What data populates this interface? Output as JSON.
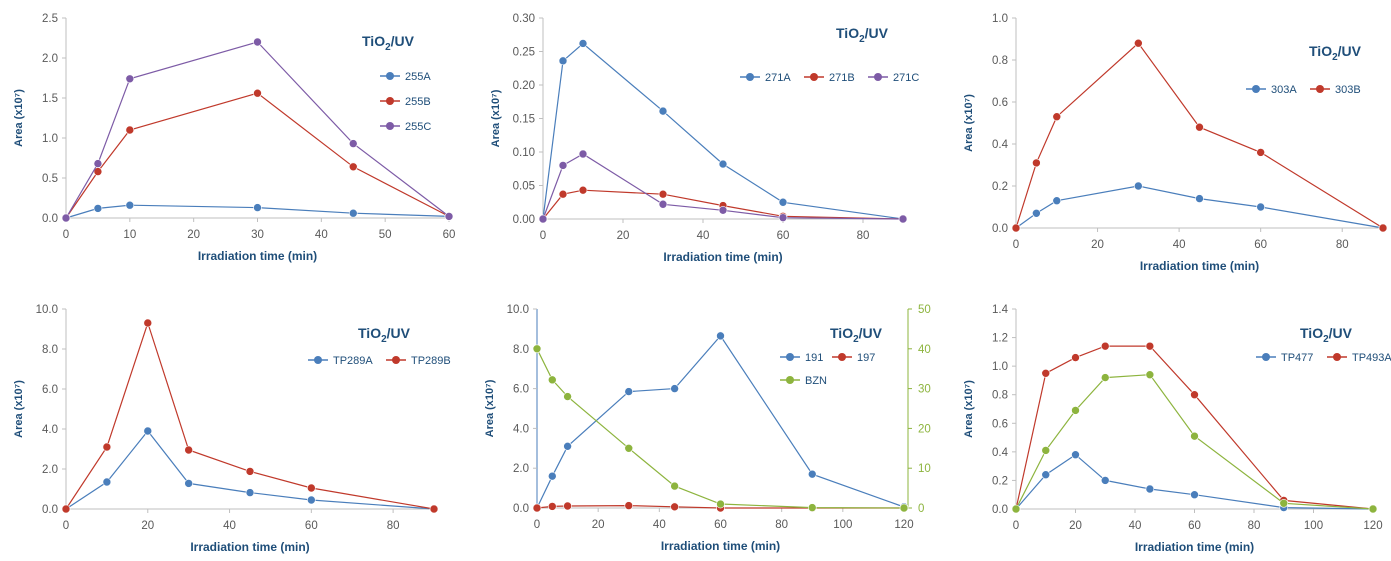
{
  "colors": {
    "blue": "#4a7ebb",
    "red": "#c0392b",
    "purple": "#7d5ba6",
    "green": "#8db43e",
    "axis": "#bfbfbf",
    "text": "#1f4e79"
  },
  "chart_data": [
    {
      "type": "line",
      "title": "TiO2/UV",
      "xlabel": "Irradiation time (min)",
      "ylabel": "Area (x10⁷)",
      "xlim": [
        0,
        60
      ],
      "xticks": [
        0,
        10,
        20,
        30,
        40,
        50,
        60
      ],
      "ylim": [
        0,
        2.5
      ],
      "yticks": [
        0.0,
        0.5,
        1.0,
        1.5,
        2.0,
        2.5
      ],
      "ydec": 1,
      "legend_layout": "vertical",
      "series": [
        {
          "name": "255A",
          "color": "#4a7ebb",
          "x": [
            0,
            5,
            10,
            30,
            45,
            60
          ],
          "y": [
            0.0,
            0.12,
            0.16,
            0.13,
            0.06,
            0.02
          ]
        },
        {
          "name": "255B",
          "color": "#c0392b",
          "x": [
            0,
            5,
            10,
            30,
            45,
            60
          ],
          "y": [
            0.0,
            0.58,
            1.1,
            1.56,
            0.64,
            0.02
          ]
        },
        {
          "name": "255C",
          "color": "#7d5ba6",
          "x": [
            0,
            5,
            10,
            30,
            45,
            60
          ],
          "y": [
            0.0,
            0.68,
            1.74,
            2.2,
            0.93,
            0.02
          ]
        }
      ]
    },
    {
      "type": "line",
      "title": "TiO2/UV",
      "xlabel": "Irradiation time (min)",
      "ylabel": "Area (x10⁷)",
      "xlim": [
        0,
        90
      ],
      "xticks": [
        0,
        20,
        40,
        60,
        80
      ],
      "ylim": [
        0,
        0.3
      ],
      "yticks": [
        0.0,
        0.05,
        0.1,
        0.15,
        0.2,
        0.25,
        0.3
      ],
      "ydec": 2,
      "legend_layout": "horizontal",
      "series": [
        {
          "name": "271A",
          "color": "#4a7ebb",
          "x": [
            0,
            5,
            10,
            30,
            45,
            60,
            90
          ],
          "y": [
            0.0,
            0.236,
            0.262,
            0.161,
            0.082,
            0.025,
            0.0
          ]
        },
        {
          "name": "271B",
          "color": "#c0392b",
          "x": [
            0,
            5,
            10,
            30,
            45,
            60,
            90
          ],
          "y": [
            0.0,
            0.037,
            0.043,
            0.037,
            0.02,
            0.004,
            0.0
          ]
        },
        {
          "name": "271C",
          "color": "#7d5ba6",
          "x": [
            0,
            5,
            10,
            30,
            45,
            60,
            90
          ],
          "y": [
            0.0,
            0.08,
            0.097,
            0.022,
            0.013,
            0.002,
            0.0
          ]
        }
      ]
    },
    {
      "type": "line",
      "title": "TiO2/UV",
      "xlabel": "Irradiation time (min)",
      "ylabel": "Area (x10⁷)",
      "xlim": [
        0,
        90
      ],
      "xticks": [
        0,
        20,
        40,
        60,
        80
      ],
      "ylim": [
        0,
        1.0
      ],
      "yticks": [
        0.0,
        0.2,
        0.4,
        0.6,
        0.8,
        1.0
      ],
      "ydec": 1,
      "legend_layout": "horizontal",
      "series": [
        {
          "name": "303A",
          "color": "#4a7ebb",
          "x": [
            0,
            5,
            10,
            30,
            45,
            60,
            90
          ],
          "y": [
            0.0,
            0.07,
            0.13,
            0.2,
            0.14,
            0.1,
            0.0
          ]
        },
        {
          "name": "303B",
          "color": "#c0392b",
          "x": [
            0,
            5,
            10,
            30,
            45,
            60,
            90
          ],
          "y": [
            0.0,
            0.31,
            0.53,
            0.88,
            0.48,
            0.36,
            0.0
          ]
        }
      ]
    },
    {
      "type": "line",
      "title": "TiO2/UV",
      "xlabel": "Irradiation time (min)",
      "ylabel": "Area (x10⁷)",
      "xlim": [
        0,
        90
      ],
      "xticks": [
        0,
        20,
        40,
        60,
        80
      ],
      "ylim": [
        0,
        10
      ],
      "yticks": [
        0,
        2,
        4,
        6,
        8,
        10
      ],
      "ydec": 1,
      "legend_layout": "horizontal",
      "series": [
        {
          "name": "TP289A",
          "color": "#4a7ebb",
          "x": [
            0,
            10,
            20,
            30,
            45,
            60,
            90
          ],
          "y": [
            0.0,
            1.35,
            3.9,
            1.28,
            0.82,
            0.45,
            0.0
          ]
        },
        {
          "name": "TP289B",
          "color": "#c0392b",
          "x": [
            0,
            10,
            20,
            30,
            45,
            60,
            90
          ],
          "y": [
            0.0,
            3.1,
            9.3,
            2.95,
            1.88,
            1.05,
            0.0
          ]
        }
      ]
    },
    {
      "type": "line",
      "title": "TiO2/UV",
      "xlabel": "Irradiation time (min)",
      "ylabel": "Area (x10⁷)",
      "xlim": [
        0,
        120
      ],
      "xticks": [
        0,
        20,
        40,
        60,
        80,
        100,
        120
      ],
      "ylim": [
        0,
        10
      ],
      "yticks": [
        0,
        2,
        4,
        6,
        8,
        10
      ],
      "ydec": 1,
      "y2lim": [
        0,
        50
      ],
      "y2ticks": [
        0,
        10,
        20,
        30,
        40,
        50
      ],
      "y2dec": 0,
      "legend_layout": "grid",
      "series": [
        {
          "name": "191",
          "color": "#4a7ebb",
          "axis": "y",
          "x": [
            0,
            5,
            10,
            30,
            45,
            60,
            90,
            120
          ],
          "y": [
            0.0,
            1.6,
            3.1,
            5.85,
            6.0,
            8.65,
            1.7,
            0.05
          ]
        },
        {
          "name": "197",
          "color": "#c0392b",
          "axis": "y",
          "x": [
            0,
            5,
            10,
            30,
            45,
            60,
            90,
            120
          ],
          "y": [
            0.0,
            0.08,
            0.1,
            0.12,
            0.06,
            0.0,
            0.0,
            0.0
          ]
        },
        {
          "name": "BZN",
          "color": "#8db43e",
          "axis": "y2",
          "x": [
            0,
            5,
            10,
            30,
            45,
            60,
            90,
            120
          ],
          "y": [
            40.0,
            32.2,
            28.0,
            15.0,
            5.5,
            1.0,
            0.1,
            0.0
          ]
        }
      ]
    },
    {
      "type": "line",
      "title": "TiO2/UV",
      "xlabel": "Irradiation time (min)",
      "ylabel": "Area (x10⁷)",
      "xlim": [
        0,
        120
      ],
      "xticks": [
        0,
        20,
        40,
        60,
        80,
        100,
        120
      ],
      "ylim": [
        0,
        1.4
      ],
      "yticks": [
        0.0,
        0.2,
        0.4,
        0.6,
        0.8,
        1.0,
        1.2,
        1.4
      ],
      "ydec": 1,
      "legend_layout": "horizontal",
      "series": [
        {
          "name": "TP477",
          "color": "#4a7ebb",
          "x": [
            0,
            10,
            20,
            30,
            45,
            60,
            90,
            120
          ],
          "y": [
            0.0,
            0.24,
            0.38,
            0.2,
            0.14,
            0.1,
            0.01,
            0.0
          ]
        },
        {
          "name": "TP493A",
          "color": "#c0392b",
          "x": [
            0,
            10,
            20,
            30,
            45,
            60,
            90,
            120
          ],
          "y": [
            0.0,
            0.95,
            1.06,
            1.14,
            1.14,
            0.8,
            0.06,
            0.0
          ]
        },
        {
          "color": "#8db43e",
          "x": [
            0,
            10,
            20,
            30,
            45,
            60,
            90,
            120
          ],
          "y": [
            0.0,
            0.41,
            0.69,
            0.92,
            0.94,
            0.51,
            0.04,
            0.0
          ]
        }
      ]
    }
  ]
}
